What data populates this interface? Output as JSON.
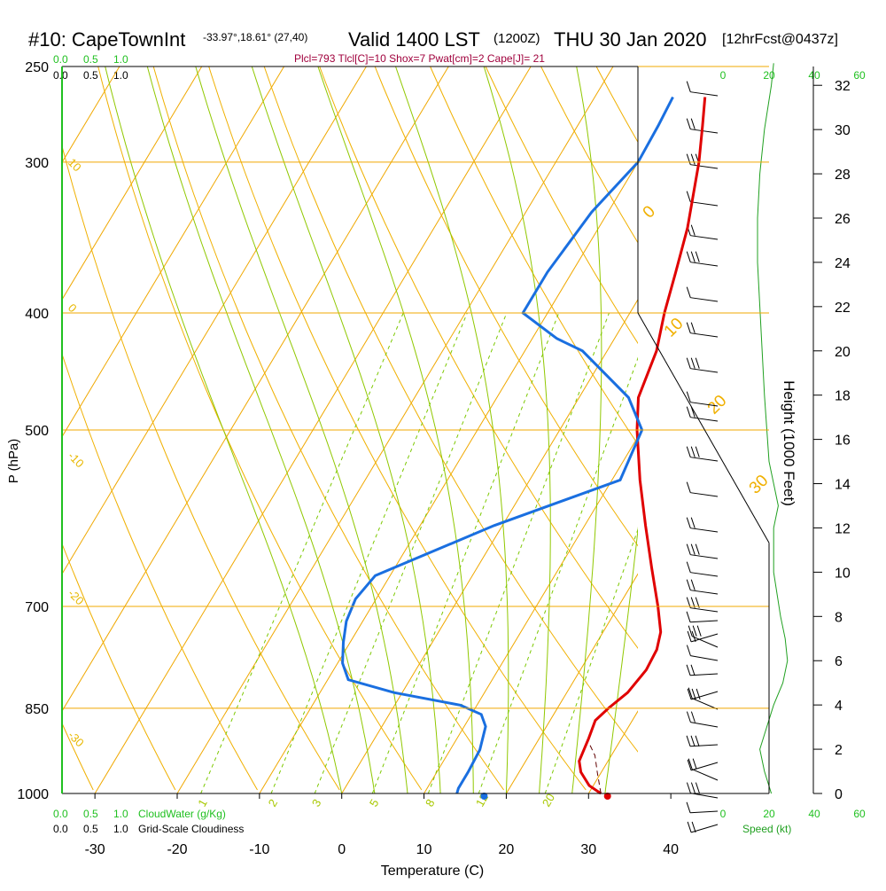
{
  "header": {
    "station": "#10: CapeTownInt",
    "location": "-33.97°,18.61° (27,40)",
    "valid": "Valid 1400 LST",
    "zulu": "(1200Z)",
    "date": "THU 30 Jan 2020",
    "forecast": "[12hrFcst@0437z]",
    "indices": "Plcl=793 Tlcl[C]=10 Shox=7 Pwat[cm]=2 Cape[J]= 21"
  },
  "colors": {
    "isobar": "#f0a800",
    "dry_adiabat": "#f0b000",
    "moist_adiabat": "#90c800",
    "mixing_ratio": "#7cc800",
    "temperature": "#e00000",
    "dewpoint": "#1a6fe0",
    "wind_speed": "#20a020",
    "cloud": "#20c020",
    "indices_text": "#a0003c"
  },
  "legend": {
    "cloudwater_label": "CloudWater (g/Kg)",
    "cloudiness_label": "Grid-Scale Cloudiness",
    "scale_top_green": [
      "0.0",
      "0.5",
      "1.0"
    ],
    "scale_top_black": [
      "0.0",
      "0.5",
      "1.0"
    ],
    "scale_bottom_green": [
      "0.0",
      "0.5",
      "1.0"
    ],
    "scale_bottom_black": [
      "0.0",
      "0.5",
      "1.0"
    ]
  },
  "speed_axis": {
    "label": "Speed (kt)",
    "ticks_top": [
      "0",
      "20",
      "40",
      "60"
    ],
    "ticks_bottom": [
      "0",
      "20",
      "40",
      "60"
    ]
  },
  "chart_data": {
    "type": "line",
    "title": "#10: CapeTownInt Valid 1400 LST (1200Z) THU 30 Jan 2020",
    "xlabel": "Temperature (C)",
    "ylabel": "P (hPa)",
    "y2label": "Height (1000 Feet)",
    "xlim": [
      -34,
      36
    ],
    "ylim": [
      1000,
      250
    ],
    "x_ticks": [
      -30,
      -20,
      -10,
      0,
      10,
      20,
      30,
      40
    ],
    "pressure_ticks": [
      250,
      300,
      400,
      500,
      700,
      850,
      1000
    ],
    "height_ticks": [
      0,
      2,
      4,
      6,
      8,
      10,
      12,
      14,
      16,
      18,
      20,
      22,
      24,
      26,
      28,
      30,
      32
    ],
    "dry_adiabat_labels": [
      "0",
      "10",
      "20",
      "30"
    ],
    "temp_isotherm_labels": [
      "10",
      "0",
      "-10",
      "-20",
      "-30"
    ],
    "mixing_ratio_labels": [
      "1",
      "2",
      "3",
      "5",
      "8",
      "12",
      "20"
    ],
    "series": [
      {
        "name": "Temperature",
        "values": [
          [
            1000,
            31.5
          ],
          [
            985,
            29.5
          ],
          [
            960,
            27.5
          ],
          [
            940,
            26.5
          ],
          [
            900,
            26.0
          ],
          [
            870,
            25.5
          ],
          [
            850,
            26.2
          ],
          [
            825,
            27.4
          ],
          [
            790,
            28.0
          ],
          [
            760,
            27.8
          ],
          [
            735,
            27.0
          ],
          [
            700,
            24.8
          ],
          [
            650,
            21.2
          ],
          [
            600,
            17.4
          ],
          [
            550,
            13.4
          ],
          [
            500,
            9.4
          ],
          [
            470,
            7.2
          ],
          [
            430,
            6.0
          ],
          [
            400,
            4.2
          ],
          [
            370,
            2.6
          ],
          [
            340,
            0.8
          ],
          [
            300,
            -2.6
          ],
          [
            280,
            -4.8
          ],
          [
            265,
            -6.6
          ]
        ]
      },
      {
        "name": "Dewpoint",
        "values": [
          [
            1000,
            14.0
          ],
          [
            990,
            13.8
          ],
          [
            960,
            13.8
          ],
          [
            920,
            13.6
          ],
          [
            880,
            12.6
          ],
          [
            860,
            11.2
          ],
          [
            845,
            8.0
          ],
          [
            825,
            -1.0
          ],
          [
            805,
            -7.5
          ],
          [
            780,
            -9.4
          ],
          [
            750,
            -10.8
          ],
          [
            720,
            -12.0
          ],
          [
            690,
            -12.5
          ],
          [
            660,
            -11.8
          ],
          [
            600,
            -1.0
          ],
          [
            550,
            11.0
          ],
          [
            500,
            10.0
          ],
          [
            470,
            6.0
          ],
          [
            430,
            -3.0
          ],
          [
            420,
            -7.0
          ],
          [
            400,
            -13.0
          ],
          [
            370,
            -13.0
          ],
          [
            330,
            -12.0
          ],
          [
            300,
            -10.0
          ],
          [
            280,
            -10.2
          ],
          [
            265,
            -10.5
          ]
        ]
      },
      {
        "name": "Parcel",
        "values": [
          [
            1000,
            31.5
          ],
          [
            960,
            29.5
          ],
          [
            930,
            28.0
          ],
          [
            910,
            26.5
          ]
        ]
      },
      {
        "name": "Wind speed",
        "values": [
          [
            0,
            21
          ],
          [
            1,
            18
          ],
          [
            2,
            16
          ],
          [
            3,
            19
          ],
          [
            4,
            22
          ],
          [
            5,
            26
          ],
          [
            6,
            28
          ],
          [
            7,
            27
          ],
          [
            8,
            25
          ],
          [
            10,
            22
          ],
          [
            12,
            22
          ],
          [
            13,
            24
          ],
          [
            15,
            20
          ],
          [
            18,
            18
          ],
          [
            20,
            17
          ],
          [
            22,
            16
          ],
          [
            24,
            15
          ],
          [
            26,
            15
          ],
          [
            28,
            16
          ],
          [
            30,
            18
          ],
          [
            32,
            21
          ],
          [
            33,
            22
          ]
        ]
      }
    ],
    "surface_temperature": 32.5,
    "surface_dewpoint": 17.5,
    "grid": true
  }
}
